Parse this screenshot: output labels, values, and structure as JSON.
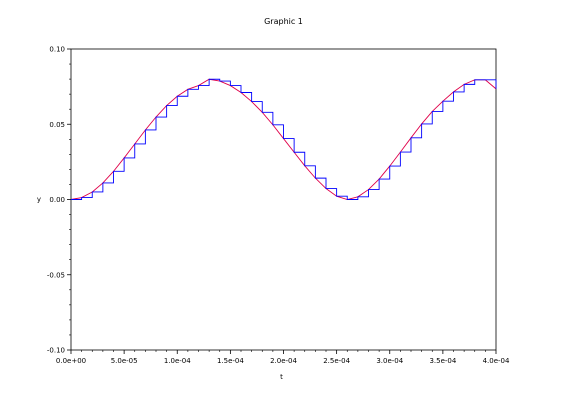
{
  "chart_data": {
    "type": "line",
    "title": "Graphic 1",
    "xlabel": "t",
    "ylabel": "y",
    "xlim": [
      0,
      0.0004
    ],
    "ylim": [
      -0.1,
      0.1
    ],
    "x_ticks": [
      "0.0e+00",
      "5.0e-05",
      "1.0e-04",
      "1.5e-04",
      "2.0e-04",
      "2.5e-04",
      "3.0e-04",
      "3.5e-04",
      "4.0e-04"
    ],
    "y_ticks": [
      "0.10",
      "0.05",
      "0.00",
      "-0.05",
      "-0.10"
    ],
    "y_tick_values": [
      0.1,
      0.05,
      0.0,
      -0.05,
      -0.1
    ],
    "grid": false,
    "series": [
      {
        "style": "line",
        "color": "#e0004a",
        "x": [
          0,
          1e-05,
          2e-05,
          3e-05,
          4e-05,
          5e-05,
          6e-05,
          7e-05,
          8e-05,
          9e-05,
          0.0001,
          0.00011,
          0.00012,
          0.00013,
          0.00014,
          0.00015,
          0.00016,
          0.00017,
          0.00018,
          0.00019,
          0.0002,
          0.00021,
          0.00022,
          0.00023,
          0.00024,
          0.00025,
          0.00026,
          0.00027,
          0.00028,
          0.00029,
          0.0003,
          0.00031,
          0.00032,
          0.00033,
          0.00034,
          0.00035,
          0.00036,
          0.00037,
          0.00038,
          0.00039,
          0.0004
        ],
        "y": [
          0.0,
          0.0013,
          0.005,
          0.011,
          0.0187,
          0.0276,
          0.0369,
          0.0462,
          0.0548,
          0.0624,
          0.0686,
          0.0732,
          0.0757,
          0.0799,
          0.0787,
          0.0757,
          0.0711,
          0.0651,
          0.0579,
          0.0496,
          0.0405,
          0.0314,
          0.0224,
          0.0142,
          0.0073,
          0.0022,
          0.0,
          0.0018,
          0.0066,
          0.0136,
          0.0222,
          0.0315,
          0.041,
          0.0502,
          0.0585,
          0.0653,
          0.0715,
          0.0765,
          0.0795,
          0.0795,
          0.0735
        ]
      },
      {
        "style": "step",
        "color": "#0000ff",
        "x": [
          0,
          1e-05,
          2e-05,
          3e-05,
          4e-05,
          5e-05,
          6e-05,
          7e-05,
          8e-05,
          9e-05,
          0.0001,
          0.00011,
          0.00012,
          0.00013,
          0.00014,
          0.00015,
          0.00016,
          0.00017,
          0.00018,
          0.00019,
          0.0002,
          0.00021,
          0.00022,
          0.00023,
          0.00024,
          0.00025,
          0.00026,
          0.00027,
          0.00028,
          0.00029,
          0.0003,
          0.00031,
          0.00032,
          0.00033,
          0.00034,
          0.00035,
          0.00036,
          0.00037,
          0.00038,
          0.00039,
          0.0004
        ],
        "y": [
          0.0,
          0.0013,
          0.005,
          0.011,
          0.0187,
          0.0276,
          0.0369,
          0.0462,
          0.0548,
          0.0624,
          0.0686,
          0.0732,
          0.0757,
          0.0799,
          0.0787,
          0.0757,
          0.0711,
          0.0651,
          0.0579,
          0.0496,
          0.0405,
          0.0314,
          0.0224,
          0.0142,
          0.0073,
          0.0022,
          0.0,
          0.0018,
          0.0066,
          0.0136,
          0.0222,
          0.0315,
          0.041,
          0.0502,
          0.0585,
          0.0653,
          0.0715,
          0.0765,
          0.0795,
          0.0795,
          0.0735
        ]
      }
    ]
  }
}
